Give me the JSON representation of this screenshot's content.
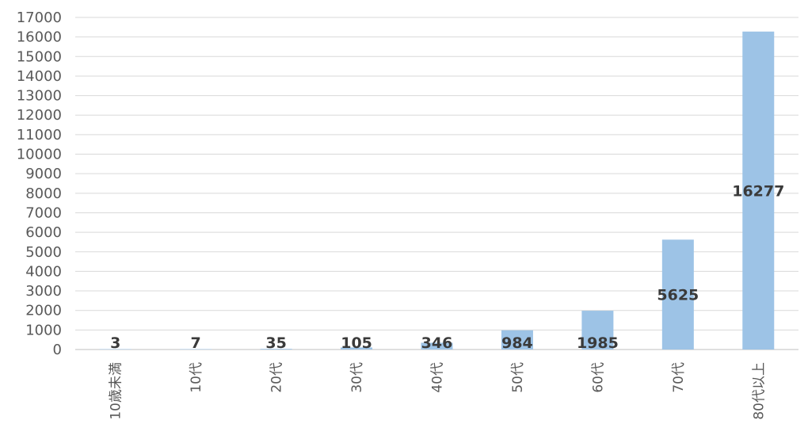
{
  "chart_data": {
    "type": "bar",
    "categories": [
      "10歳未満",
      "10代",
      "20代",
      "30代",
      "40代",
      "50代",
      "60代",
      "70代",
      "80代以上"
    ],
    "values": [
      3,
      7,
      35,
      105,
      346,
      984,
      1985,
      5625,
      16277
    ],
    "data_labels": [
      "3",
      "7",
      "35",
      "105",
      "346",
      "984",
      "1985",
      "5625",
      "16277"
    ],
    "ylim": [
      0,
      17000
    ],
    "yticks": [
      0,
      1000,
      2000,
      3000,
      4000,
      5000,
      6000,
      7000,
      8000,
      9000,
      10000,
      11000,
      12000,
      13000,
      14000,
      15000,
      16000,
      17000
    ],
    "grid": true,
    "legend": "none",
    "bar_color": "#9dc3e6",
    "grid_color": "#d9d9d9"
  }
}
